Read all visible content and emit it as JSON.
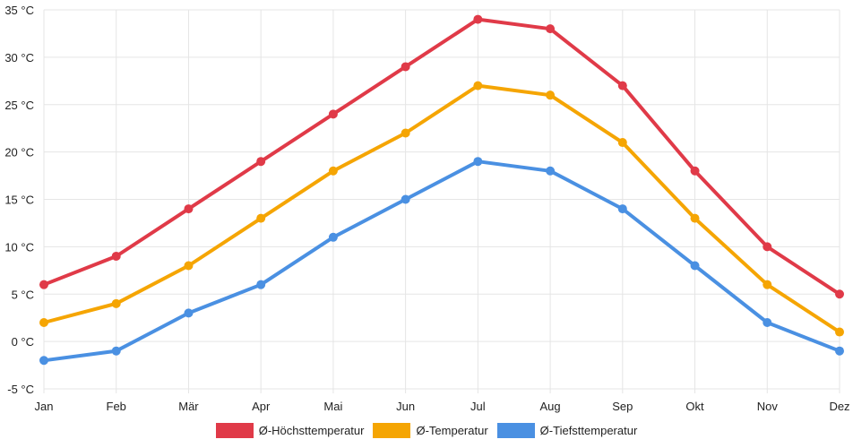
{
  "chart_data": {
    "type": "line",
    "categories": [
      "Jan",
      "Feb",
      "Mär",
      "Apr",
      "Mai",
      "Jun",
      "Jul",
      "Aug",
      "Sep",
      "Okt",
      "Nov",
      "Dez"
    ],
    "ylim": [
      -5,
      35
    ],
    "yticks": [
      {
        "value": -5,
        "label": "-5 °C"
      },
      {
        "value": 0,
        "label": "0 °C"
      },
      {
        "value": 5,
        "label": "5 °C"
      },
      {
        "value": 10,
        "label": "10 °C"
      },
      {
        "value": 15,
        "label": "15 °C"
      },
      {
        "value": 20,
        "label": "20 °C"
      },
      {
        "value": 25,
        "label": "25 °C"
      },
      {
        "value": 30,
        "label": "30 °C"
      },
      {
        "value": 35,
        "label": "35 °C"
      }
    ],
    "grid": true,
    "legend_position": "bottom",
    "series": [
      {
        "name": "Ø-Höchsttemperatur",
        "key": "max",
        "color": "#e03a48",
        "values": [
          6,
          9,
          14,
          19,
          24,
          29,
          34,
          33,
          27,
          18,
          10,
          5
        ]
      },
      {
        "name": "Ø-Temperatur",
        "key": "avg",
        "color": "#f5a503",
        "values": [
          2,
          4,
          8,
          13,
          18,
          22,
          27,
          26,
          21,
          13,
          6,
          1
        ]
      },
      {
        "name": "Ø-Tiefsttemperatur",
        "key": "min",
        "color": "#4a90e2",
        "values": [
          -2,
          -1,
          3,
          6,
          11,
          15,
          19,
          18,
          14,
          8,
          2,
          -1
        ]
      }
    ]
  }
}
